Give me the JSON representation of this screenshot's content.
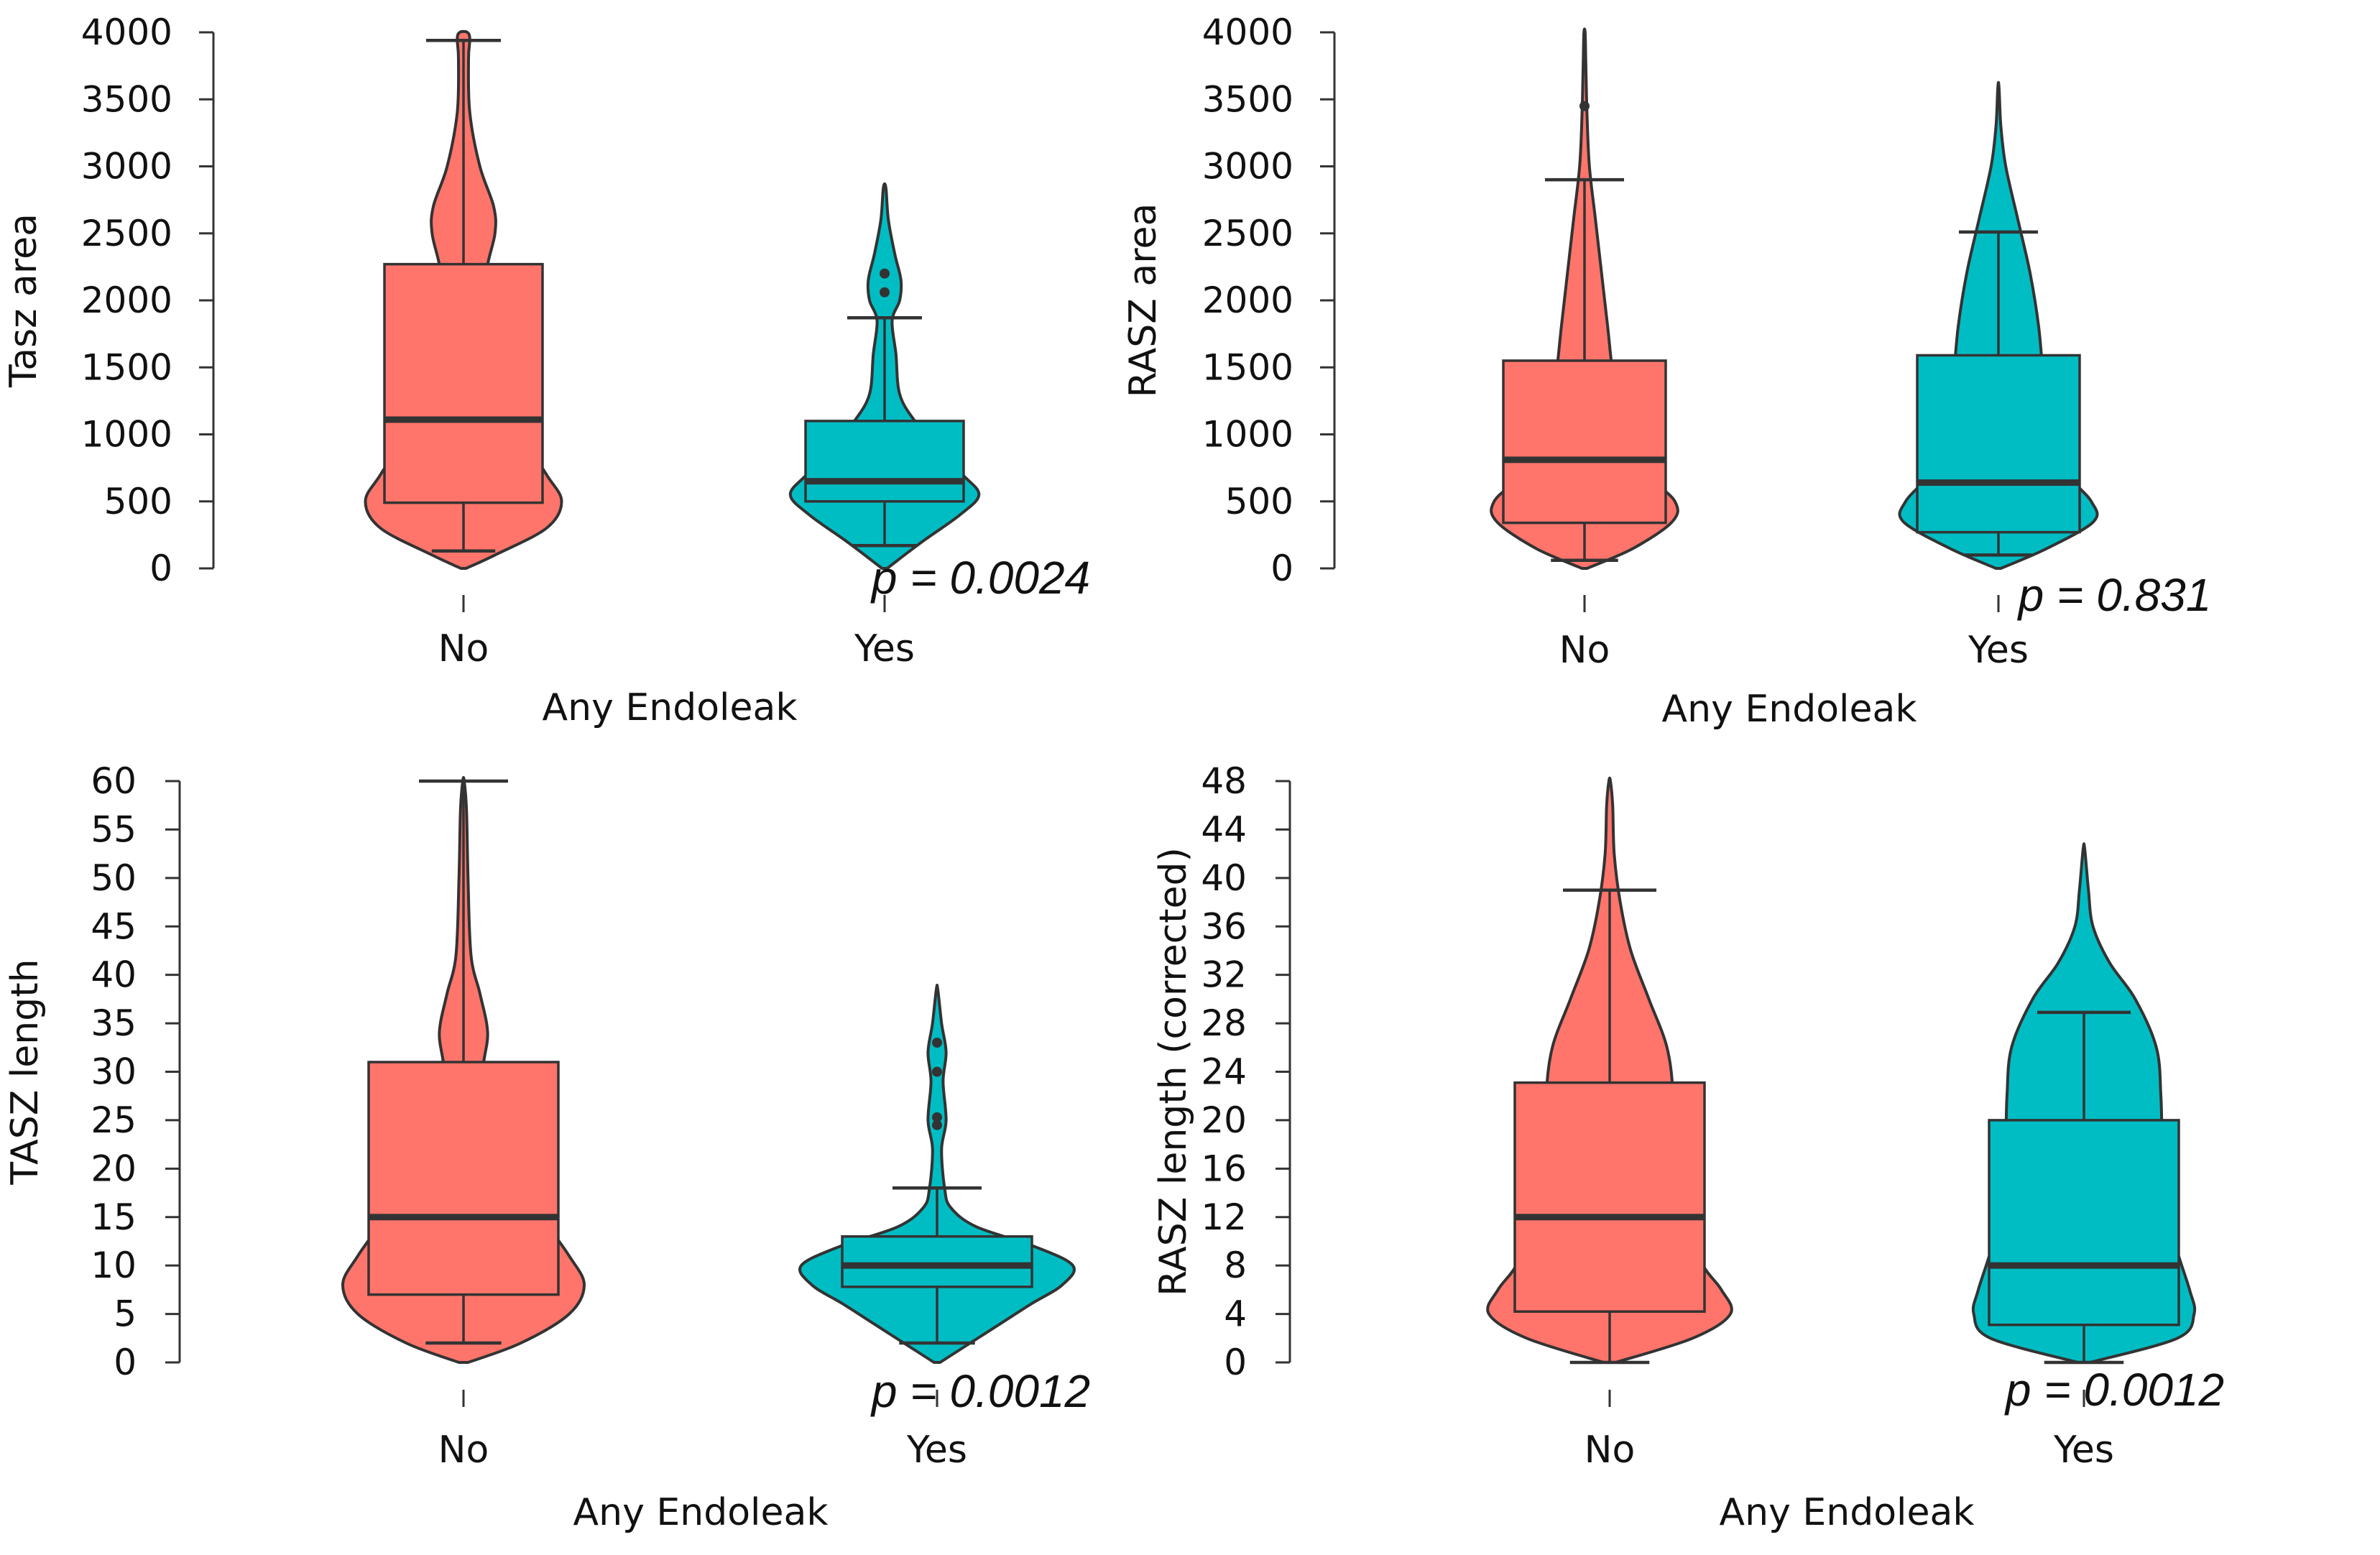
{
  "chart_data": [
    {
      "type": "violin-box",
      "ylabel": "Tasz area",
      "xlabel": "Any Endoleak",
      "categories": [
        "No",
        "Yes"
      ],
      "ylim": [
        0,
        4000
      ],
      "yticks": [
        0,
        500,
        1000,
        1500,
        2000,
        2500,
        3000,
        3500,
        4000
      ],
      "p_value": "p = 0.0024",
      "groups": [
        {
          "name": "No",
          "color": "#FF756B",
          "box": {
            "whisker_low": 130,
            "q1": 490,
            "median": 1110,
            "q3": 2270,
            "whisker_high": 3940
          },
          "outliers": [],
          "density": [
            [
              0,
              0.02
            ],
            [
              100,
              0.25
            ],
            [
              300,
              0.66
            ],
            [
              500,
              0.78
            ],
            [
              700,
              0.66
            ],
            [
              1000,
              0.46
            ],
            [
              1400,
              0.28
            ],
            [
              1800,
              0.17
            ],
            [
              2200,
              0.18
            ],
            [
              2500,
              0.25
            ],
            [
              2700,
              0.24
            ],
            [
              3000,
              0.13
            ],
            [
              3400,
              0.05
            ],
            [
              3800,
              0.04
            ],
            [
              3950,
              0.05
            ],
            [
              4000,
              0.03
            ]
          ]
        },
        {
          "name": "Yes",
          "color": "#00BDC4",
          "box": {
            "whisker_low": 170,
            "q1": 500,
            "median": 650,
            "q3": 1100,
            "whisker_high": 1870
          },
          "outliers": [
            2060,
            2200
          ],
          "density": [
            [
              0,
              0.02
            ],
            [
              200,
              0.3
            ],
            [
              400,
              0.6
            ],
            [
              550,
              0.75
            ],
            [
              700,
              0.62
            ],
            [
              900,
              0.42
            ],
            [
              1100,
              0.24
            ],
            [
              1300,
              0.12
            ],
            [
              1600,
              0.09
            ],
            [
              1850,
              0.06
            ],
            [
              2000,
              0.12
            ],
            [
              2150,
              0.13
            ],
            [
              2350,
              0.08
            ],
            [
              2600,
              0.03
            ],
            [
              2840,
              0.01
            ]
          ]
        }
      ]
    },
    {
      "type": "violin-box",
      "ylabel": "RASZ area",
      "xlabel": "Any Endoleak",
      "categories": [
        "No",
        "Yes"
      ],
      "ylim": [
        0,
        4000
      ],
      "yticks": [
        0,
        500,
        1000,
        1500,
        2000,
        2500,
        3000,
        3500,
        4000
      ],
      "p_value": "p = 0.831",
      "groups": [
        {
          "name": "No",
          "color": "#FF756B",
          "box": {
            "whisker_low": 60,
            "q1": 340,
            "median": 810,
            "q3": 1550,
            "whisker_high": 2900
          },
          "outliers": [
            3450
          ],
          "density": [
            [
              0,
              0.02
            ],
            [
              150,
              0.4
            ],
            [
              350,
              0.72
            ],
            [
              500,
              0.74
            ],
            [
              700,
              0.52
            ],
            [
              1000,
              0.33
            ],
            [
              1400,
              0.24
            ],
            [
              1800,
              0.19
            ],
            [
              2200,
              0.14
            ],
            [
              2600,
              0.09
            ],
            [
              3000,
              0.04
            ],
            [
              3400,
              0.02
            ],
            [
              3800,
              0.01
            ],
            [
              4000,
              0.005
            ]
          ]
        },
        {
          "name": "Yes",
          "color": "#00BDC4",
          "box": {
            "whisker_low": 100,
            "q1": 270,
            "median": 640,
            "q3": 1590,
            "whisker_high": 2510
          },
          "outliers": [],
          "density": [
            [
              0,
              0.02
            ],
            [
              150,
              0.4
            ],
            [
              350,
              0.78
            ],
            [
              500,
              0.76
            ],
            [
              700,
              0.57
            ],
            [
              1000,
              0.42
            ],
            [
              1400,
              0.37
            ],
            [
              1800,
              0.33
            ],
            [
              2200,
              0.26
            ],
            [
              2600,
              0.16
            ],
            [
              3000,
              0.06
            ],
            [
              3300,
              0.02
            ],
            [
              3590,
              0.005
            ]
          ]
        }
      ]
    },
    {
      "type": "violin-box",
      "ylabel": "TASZ length",
      "xlabel": "Any Endoleak",
      "categories": [
        "No",
        "Yes"
      ],
      "ylim": [
        0,
        60
      ],
      "yticks": [
        0,
        5,
        10,
        15,
        20,
        25,
        30,
        35,
        40,
        45,
        50,
        55,
        60
      ],
      "p_value": "p = 0.0012",
      "groups": [
        {
          "name": "No",
          "color": "#FF756B",
          "box": {
            "whisker_low": 2,
            "q1": 7,
            "median": 15,
            "q3": 31,
            "whisker_high": 60
          },
          "outliers": [],
          "density": [
            [
              0,
              0.03
            ],
            [
              2,
              0.38
            ],
            [
              5,
              0.7
            ],
            [
              8,
              0.8
            ],
            [
              11,
              0.7
            ],
            [
              15,
              0.52
            ],
            [
              20,
              0.32
            ],
            [
              25,
              0.17
            ],
            [
              30,
              0.13
            ],
            [
              34,
              0.16
            ],
            [
              38,
              0.11
            ],
            [
              42,
              0.05
            ],
            [
              50,
              0.03
            ],
            [
              57,
              0.02
            ],
            [
              60,
              0.005
            ]
          ]
        },
        {
          "name": "Yes",
          "color": "#00BDC4",
          "box": {
            "whisker_low": 2,
            "q1": 7.8,
            "median": 10,
            "q3": 13,
            "whisker_high": 18
          },
          "outliers": [
            24.5,
            25.3,
            30,
            33
          ],
          "density": [
            [
              0,
              0.02
            ],
            [
              2,
              0.22
            ],
            [
              4,
              0.42
            ],
            [
              6,
              0.62
            ],
            [
              8,
              0.83
            ],
            [
              10,
              0.9
            ],
            [
              12,
              0.64
            ],
            [
              14,
              0.26
            ],
            [
              16,
              0.09
            ],
            [
              18,
              0.05
            ],
            [
              22,
              0.03
            ],
            [
              25,
              0.06
            ],
            [
              29,
              0.04
            ],
            [
              32,
              0.06
            ],
            [
              35,
              0.03
            ],
            [
              38.5,
              0.005
            ]
          ]
        }
      ]
    },
    {
      "type": "violin-box",
      "ylabel": "RASZ length (corrected)",
      "xlabel": "Any Endoleak",
      "categories": [
        "No",
        "Yes"
      ],
      "ylim": [
        0,
        48
      ],
      "yticks": [
        0,
        4,
        8,
        12,
        16,
        20,
        24,
        28,
        32,
        36,
        40,
        44,
        48
      ],
      "p_value": "p = 0.0012",
      "groups": [
        {
          "name": "No",
          "color": "#FF756B",
          "box": {
            "whisker_low": 0,
            "q1": 4.2,
            "median": 12,
            "q3": 23.1,
            "whisker_high": 39
          },
          "outliers": [],
          "density": [
            [
              0,
              0.04
            ],
            [
              2,
              0.55
            ],
            [
              4,
              0.8
            ],
            [
              6,
              0.74
            ],
            [
              8,
              0.62
            ],
            [
              11,
              0.54
            ],
            [
              14,
              0.46
            ],
            [
              18,
              0.41
            ],
            [
              22,
              0.42
            ],
            [
              26,
              0.38
            ],
            [
              30,
              0.26
            ],
            [
              34,
              0.14
            ],
            [
              38,
              0.07
            ],
            [
              42,
              0.03
            ],
            [
              46,
              0.02
            ],
            [
              48,
              0.005
            ]
          ]
        },
        {
          "name": "Yes",
          "color": "#00BDC4",
          "box": {
            "whisker_low": 0,
            "q1": 3.1,
            "median": 8,
            "q3": 20,
            "whisker_high": 28.9
          },
          "outliers": [],
          "density": [
            [
              0,
              0.04
            ],
            [
              2,
              0.62
            ],
            [
              4,
              0.73
            ],
            [
              6,
              0.7
            ],
            [
              10,
              0.6
            ],
            [
              14,
              0.55
            ],
            [
              18,
              0.52
            ],
            [
              22,
              0.51
            ],
            [
              26,
              0.48
            ],
            [
              30,
              0.34
            ],
            [
              33,
              0.17
            ],
            [
              36,
              0.06
            ],
            [
              39,
              0.03
            ],
            [
              42.4,
              0.005
            ]
          ]
        }
      ]
    }
  ]
}
